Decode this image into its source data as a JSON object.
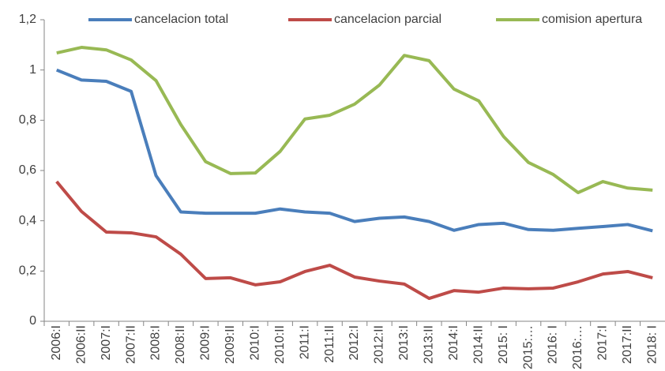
{
  "chart_data": {
    "type": "line",
    "categories": [
      "2006:I",
      "2006:II",
      "2007:I",
      "2007:II",
      "2008:I",
      "2008:II",
      "2009:I",
      "2009:II",
      "2010:I",
      "2010:II",
      "2011:I",
      "2011:II",
      "2012:I",
      "2012:II",
      "2013:I",
      "2013:II",
      "2014:I",
      "2014:II",
      "2015: I",
      "2015:…",
      "2016: I",
      "2016:…",
      "2017:I",
      "2017:II",
      "2018: I"
    ],
    "series": [
      {
        "name": "cancelacion total",
        "color": "#4a7ebb",
        "values": [
          1.0,
          0.96,
          0.955,
          0.915,
          0.58,
          0.435,
          0.43,
          0.43,
          0.43,
          0.447,
          0.435,
          0.43,
          0.397,
          0.41,
          0.415,
          0.397,
          0.362,
          0.385,
          0.39,
          0.365,
          0.362,
          0.37,
          0.377,
          0.385,
          0.36
        ]
      },
      {
        "name": "cancelacion parcial",
        "color": "#be4b48",
        "values": [
          0.556,
          0.437,
          0.355,
          0.352,
          0.336,
          0.267,
          0.17,
          0.173,
          0.145,
          0.157,
          0.198,
          0.223,
          0.176,
          0.16,
          0.148,
          0.091,
          0.122,
          0.116,
          0.132,
          0.129,
          0.132,
          0.157,
          0.188,
          0.198,
          0.173
        ]
      },
      {
        "name": "comision apertura",
        "color": "#98b954",
        "values": [
          1.068,
          1.09,
          1.08,
          1.04,
          0.958,
          0.783,
          0.635,
          0.588,
          0.59,
          0.676,
          0.805,
          0.82,
          0.864,
          0.94,
          1.058,
          1.037,
          0.924,
          0.877,
          0.735,
          0.632,
          0.584,
          0.512,
          0.556,
          0.53,
          0.522
        ]
      }
    ],
    "ylim": [
      0,
      1.2
    ],
    "yticks": [
      0,
      {
        "value": 0.2,
        "label": "0,2"
      },
      {
        "value": 0.4,
        "label": "0,4"
      },
      {
        "value": 0.6,
        "label": "0,6"
      },
      {
        "value": 0.8,
        "label": "0,8"
      },
      1,
      {
        "value": 1.2,
        "label": "1,2"
      }
    ],
    "legend": "top"
  }
}
